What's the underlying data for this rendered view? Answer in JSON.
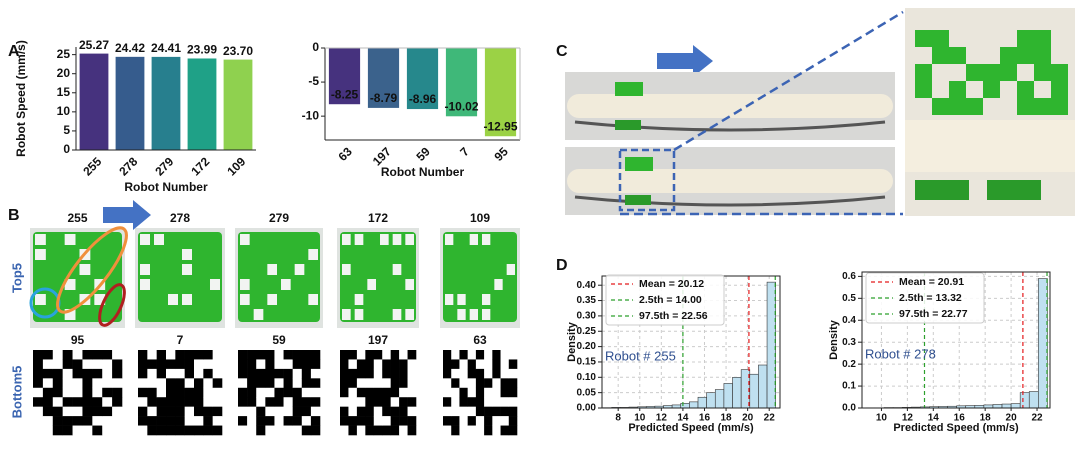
{
  "panel_labels": [
    "A",
    "B",
    "C",
    "D"
  ],
  "robot_grid": {
    "row_labels": [
      "Top5",
      "Bottom5"
    ],
    "top": [
      "255",
      "278",
      "279",
      "172",
      "109"
    ],
    "bottom": [
      "95",
      "7",
      "59",
      "197",
      "63"
    ]
  },
  "chart_data": [
    {
      "type": "bar",
      "categories": [
        "255",
        "278",
        "279",
        "172",
        "109"
      ],
      "values": [
        25.27,
        24.42,
        24.41,
        23.99,
        23.7
      ],
      "value_labels": [
        "25.27",
        "24.42",
        "24.41",
        "23.99",
        "23.70"
      ],
      "colors": [
        "#46327e",
        "#365c8d",
        "#277f8e",
        "#1fa187",
        "#8fd14f"
      ],
      "ylabel": "Robot Speed (mm/s)",
      "xlabel": "Robot Number",
      "ylim": [
        0,
        27
      ],
      "yticks": [
        0,
        5,
        10,
        15,
        20,
        25
      ]
    },
    {
      "type": "bar",
      "categories": [
        "63",
        "197",
        "59",
        "7",
        "95"
      ],
      "values": [
        -8.25,
        -8.79,
        -8.96,
        -10.02,
        -12.95
      ],
      "colors": [
        "#46327e",
        "#3b628c",
        "#26888c",
        "#3fb879",
        "#9bd245"
      ],
      "xlabel": "Robot Number",
      "ylim": [
        -13.5,
        0
      ],
      "yticks": [
        0,
        -5,
        -10
      ]
    },
    {
      "type": "histogram",
      "color": "#bfe0f0",
      "bins": [
        6.6,
        7.4,
        8.2,
        9.0,
        9.8,
        10.6,
        11.4,
        12.2,
        13.0,
        13.8,
        14.6,
        15.4,
        16.2,
        17.0,
        17.8,
        18.6,
        19.4,
        20.2,
        21.0,
        21.8,
        22.6
      ],
      "counts": [
        0.001,
        0.002,
        0.002,
        0.003,
        0.004,
        0.005,
        0.006,
        0.008,
        0.01,
        0.015,
        0.02,
        0.035,
        0.05,
        0.06,
        0.08,
        0.1,
        0.125,
        0.11,
        0.14,
        0.41
      ],
      "vlines": [
        {
          "name": "Mean = 20.12",
          "value": 20.12,
          "color": "#e41a1c"
        },
        {
          "name": "2.5th = 14.00",
          "value": 14.0,
          "color": "#2ca02c"
        },
        {
          "name": "97.5th = 22.56",
          "value": 22.56,
          "color": "#2ca02c"
        }
      ],
      "annotation": "Robot # 255",
      "xlabel": "Predicted Speed (mm/s)",
      "ylabel": "Density",
      "xlim": [
        6.5,
        23
      ],
      "xticks": [
        8,
        10,
        12,
        14,
        16,
        18,
        20,
        22
      ],
      "ylim": [
        0,
        0.43
      ],
      "yticks": [
        {
          "value": 0,
          "label": "0.00"
        },
        0.05,
        {
          "value": 0.1,
          "label": "0.10"
        },
        0.15,
        {
          "value": 0.2,
          "label": "0.20"
        },
        0.25,
        {
          "value": 0.3,
          "label": "0.30"
        },
        0.35,
        {
          "value": 0.4,
          "label": "0.40"
        }
      ],
      "grid": true,
      "legend": "upper left"
    },
    {
      "type": "histogram",
      "color": "#bfe0f0",
      "bins": [
        8.8,
        9.5,
        10.2,
        10.9,
        11.6,
        12.3,
        13.0,
        13.7,
        14.4,
        15.1,
        15.8,
        16.5,
        17.2,
        17.9,
        18.6,
        19.3,
        20.0,
        20.7,
        21.4,
        22.1,
        22.8
      ],
      "counts": [
        0.001,
        0.001,
        0.002,
        0.002,
        0.003,
        0.004,
        0.005,
        0.006,
        0.007,
        0.008,
        0.01,
        0.011,
        0.012,
        0.014,
        0.016,
        0.018,
        0.02,
        0.07,
        0.075,
        0.59
      ],
      "vlines": [
        {
          "name": "Mean = 20.91",
          "value": 20.91,
          "color": "#e41a1c"
        },
        {
          "name": "2.5th = 13.32",
          "value": 13.32,
          "color": "#2ca02c"
        },
        {
          "name": "97.5th = 22.77",
          "value": 22.77,
          "color": "#2ca02c"
        }
      ],
      "annotation": "Robot # 278",
      "xlabel": "Predicted Speed (mm/s)",
      "ylabel": "Density",
      "xlim": [
        8.5,
        23
      ],
      "xticks": [
        10,
        12,
        14,
        16,
        18,
        20,
        22
      ],
      "ylim": [
        0,
        0.62
      ],
      "yticks": [
        {
          "value": 0,
          "label": "0.0"
        },
        0.1,
        0.2,
        0.3,
        0.4,
        0.5,
        0.6
      ],
      "grid": true,
      "legend": "upper left"
    }
  ]
}
